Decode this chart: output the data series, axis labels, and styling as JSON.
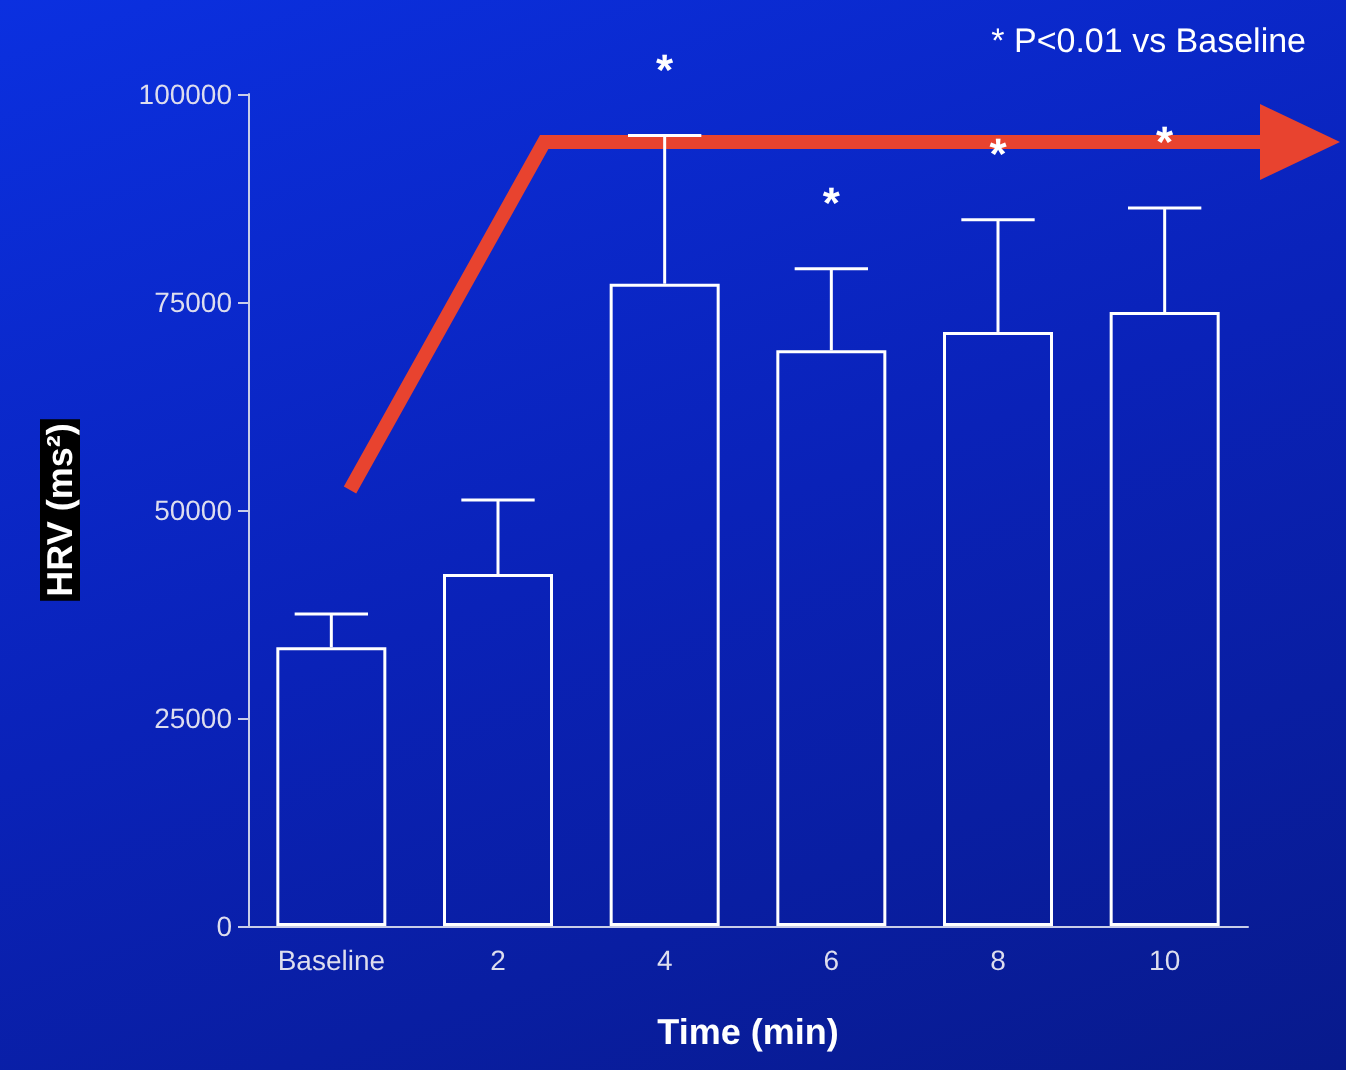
{
  "chart_data": {
    "type": "bar",
    "xlabel": "Time (min)",
    "ylabel": "HRV (ms²)",
    "categories": [
      "Baseline",
      "2",
      "4",
      "6",
      "8",
      "10"
    ],
    "values": [
      33500,
      42300,
      77200,
      69200,
      71400,
      73800
    ],
    "errors": [
      [
        33500,
        37500
      ],
      [
        42300,
        51200
      ],
      [
        77200,
        95000
      ],
      [
        69200,
        79000
      ],
      [
        71400,
        84900
      ],
      [
        73800,
        86300
      ]
    ],
    "color": "#ffffff",
    "ylim": [
      0,
      100000
    ],
    "yticks": [
      0,
      25000,
      50000,
      75000,
      100000
    ],
    "grid": false,
    "annotations": [
      "* P<0.01 vs Baseline",
      {
        "text": "*",
        "x": "4",
        "y": 95000
      },
      {
        "text": "*",
        "x": "6",
        "y": 79000
      },
      {
        "text": "*",
        "x": "8",
        "y": 84900
      },
      {
        "text": "*",
        "x": "10",
        "y": 86300
      }
    ]
  }
}
